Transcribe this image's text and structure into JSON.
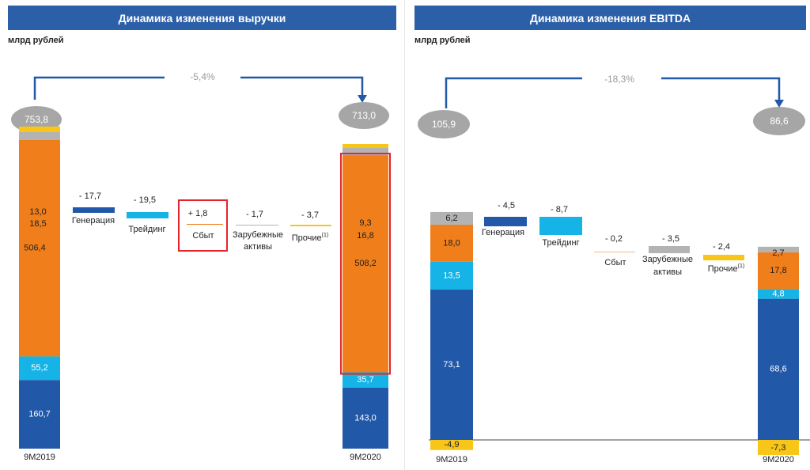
{
  "chart_data": [
    {
      "type": "waterfall",
      "title": "Динамика изменения выручки",
      "unit": "млрд рублей",
      "change": {
        "from": "753,8",
        "to": "713,0",
        "pct": "-5,4%"
      },
      "colors": {
        "dark_blue": "#2258a8",
        "light_blue": "#15b3e6",
        "orange": "#f07e1a",
        "gray": "#b3b3b3",
        "yellow": "#f7c618",
        "peach": "#f6b98c",
        "title_bg": "#2b5fa8",
        "highlight": "#e3242b"
      },
      "start": {
        "label": "9M2019",
        "segments": [
          {
            "color": "dark_blue",
            "value": 160.7,
            "text": "160,7"
          },
          {
            "color": "light_blue",
            "value": 55.2,
            "text": "55,2"
          },
          {
            "color": "orange",
            "value": 506.4,
            "text": "506,4"
          },
          {
            "color": "gray",
            "value": 18.5,
            "text": "18,5"
          },
          {
            "color": "yellow",
            "value": 13.0,
            "text": "13,0"
          }
        ]
      },
      "end": {
        "label": "9M2020",
        "segments": [
          {
            "color": "dark_blue",
            "value": 143.0,
            "text": "143,0"
          },
          {
            "color": "light_blue",
            "value": 35.7,
            "text": "35,7"
          },
          {
            "color": "orange",
            "value": 508.2,
            "text": "508,2"
          },
          {
            "color": "gray",
            "value": 16.8,
            "text": "16,8"
          },
          {
            "color": "yellow",
            "value": 9.3,
            "text": "9,3"
          }
        ]
      },
      "steps": [
        {
          "value": -17.7,
          "text": "- 17,7",
          "label": "Генерация",
          "color": "dark_blue"
        },
        {
          "value": -19.5,
          "text": "- 19,5",
          "label": "Трейдинг",
          "color": "light_blue"
        },
        {
          "value": 1.8,
          "text": "+ 1,8",
          "label": "Сбыт",
          "color": "orange",
          "highlight": true
        },
        {
          "value": -1.7,
          "text": "- 1,7",
          "label": "Зарубежные активы",
          "color": "gray"
        },
        {
          "value": -3.7,
          "text": "- 3,7",
          "label": "Прочие",
          "sup": "(1)",
          "color": "yellow"
        }
      ]
    },
    {
      "type": "waterfall",
      "title": "Динамика изменения EBITDA",
      "unit": "млрд рублей",
      "change": {
        "from": "105,9",
        "to": "86,6",
        "pct": "-18,3%"
      },
      "colors": {
        "dark_blue": "#2258a8",
        "light_blue": "#15b3e6",
        "orange": "#f07e1a",
        "gray": "#b3b3b3",
        "yellow": "#f7c618",
        "peach": "#f6b98c",
        "title_bg": "#2b5fa8"
      },
      "start": {
        "label": "9M2019",
        "negative": {
          "color": "yellow",
          "value": -4.9,
          "text": "-4,9"
        },
        "segments": [
          {
            "color": "dark_blue",
            "value": 73.1,
            "text": "73,1"
          },
          {
            "color": "light_blue",
            "value": 13.5,
            "text": "13,5"
          },
          {
            "color": "orange",
            "value": 18.0,
            "text": "18,0"
          },
          {
            "color": "gray",
            "value": 6.2,
            "text": "6,2"
          }
        ]
      },
      "end": {
        "label": "9M2020",
        "negative": {
          "color": "yellow",
          "value": -7.3,
          "text": "-7,3"
        },
        "segments": [
          {
            "color": "dark_blue",
            "value": 68.6,
            "text": "68,6"
          },
          {
            "color": "light_blue",
            "value": 4.8,
            "text": "4,8"
          },
          {
            "color": "orange",
            "value": 17.8,
            "text": "17,8"
          },
          {
            "color": "gray",
            "value": 2.7,
            "text": "2,7"
          }
        ]
      },
      "steps": [
        {
          "value": -4.5,
          "text": "- 4,5",
          "label": "Генерация",
          "color": "dark_blue"
        },
        {
          "value": -8.7,
          "text": "- 8,7",
          "label": "Трейдинг",
          "color": "light_blue"
        },
        {
          "value": -0.2,
          "text": "- 0,2",
          "label": "Сбыт",
          "color": "peach"
        },
        {
          "value": -3.5,
          "text": "- 3,5",
          "label": "Зарубежные активы",
          "color": "gray"
        },
        {
          "value": -2.4,
          "text": "- 2,4",
          "label": "Прочие",
          "sup": "(1)",
          "color": "yellow"
        }
      ]
    }
  ]
}
